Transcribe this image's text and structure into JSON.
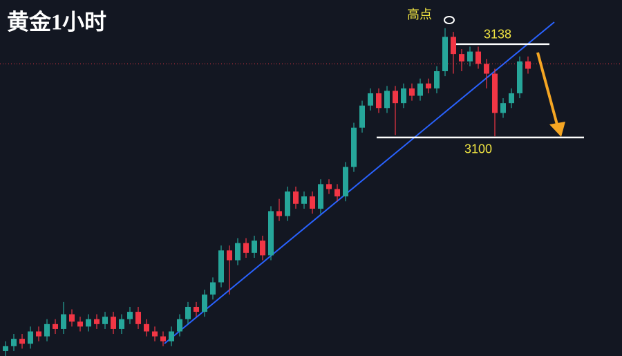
{
  "chart_data": {
    "type": "candlestick",
    "title": "黄金1小时",
    "open": [
      3013,
      3015,
      3018,
      3016,
      3021,
      3019,
      3024,
      3022,
      3028,
      3025,
      3023,
      3026,
      3024,
      3027,
      3022,
      3026,
      3029,
      3024,
      3021,
      3019,
      3017,
      3021,
      3026,
      3031,
      3029,
      3036,
      3041,
      3054,
      3050,
      3057,
      3053,
      3058,
      3052,
      3070,
      3068,
      3078,
      3073,
      3076,
      3071,
      3081,
      3079,
      3076,
      3088,
      3104,
      3113,
      3118,
      3112,
      3119,
      3114,
      3120,
      3117,
      3122,
      3120,
      3127,
      3141,
      3134,
      3131,
      3135,
      3130,
      3126,
      3110,
      3114,
      3118,
      3131
    ],
    "high": [
      3017,
      3020,
      3020,
      3023,
      3023,
      3026,
      3026,
      3033,
      3030,
      3027,
      3028,
      3028,
      3029,
      3029,
      3028,
      3031,
      3031,
      3026,
      3023,
      3021,
      3023,
      3028,
      3033,
      3033,
      3038,
      3043,
      3056,
      3056,
      3059,
      3059,
      3060,
      3060,
      3072,
      3075,
      3080,
      3080,
      3078,
      3078,
      3083,
      3083,
      3081,
      3090,
      3106,
      3115,
      3120,
      3120,
      3121,
      3121,
      3122,
      3122,
      3124,
      3124,
      3129,
      3144.5,
      3143,
      3136,
      3137,
      3137,
      3132,
      3128,
      3116,
      3120,
      3133,
      3133
    ],
    "low": [
      3011,
      3013,
      3014,
      3014,
      3017,
      3017,
      3020,
      3020,
      3023,
      3021,
      3021,
      3022,
      3022,
      3020,
      3020,
      3024,
      3022,
      3019,
      3017,
      3015,
      3015,
      3019,
      3024,
      3027,
      3027,
      3034,
      3039,
      3036,
      3048,
      3051,
      3051,
      3050,
      3050,
      3066,
      3066,
      3071,
      3071,
      3069,
      3069,
      3077,
      3074,
      3074,
      3086,
      3102,
      3111,
      3110,
      3110,
      3101,
      3112,
      3115,
      3115,
      3118,
      3118,
      3125,
      3126,
      3127,
      3129,
      3128,
      3120,
      3100.5,
      3108,
      3112,
      3116,
      3126
    ],
    "close": [
      3015,
      3018,
      3016,
      3021,
      3019,
      3024,
      3022,
      3028,
      3025,
      3023,
      3026,
      3024,
      3027,
      3022,
      3026,
      3029,
      3024,
      3021,
      3019,
      3017,
      3021,
      3026,
      3031,
      3029,
      3036,
      3041,
      3054,
      3050,
      3057,
      3053,
      3058,
      3052,
      3070,
      3068,
      3078,
      3073,
      3076,
      3071,
      3081,
      3079,
      3076,
      3088,
      3104,
      3113,
      3118,
      3112,
      3119,
      3114,
      3120,
      3117,
      3122,
      3120,
      3127,
      3141,
      3134,
      3131,
      3135,
      3130,
      3126,
      3110,
      3114,
      3118,
      3131,
      3128
    ],
    "up_color": "#26a69a",
    "down_color": "#f23645",
    "ylim": [
      3011,
      3156
    ],
    "price_line": 3130,
    "high_point_label": "高点",
    "levels": [
      {
        "value": 3138
      },
      {
        "value": 3100
      }
    ]
  }
}
